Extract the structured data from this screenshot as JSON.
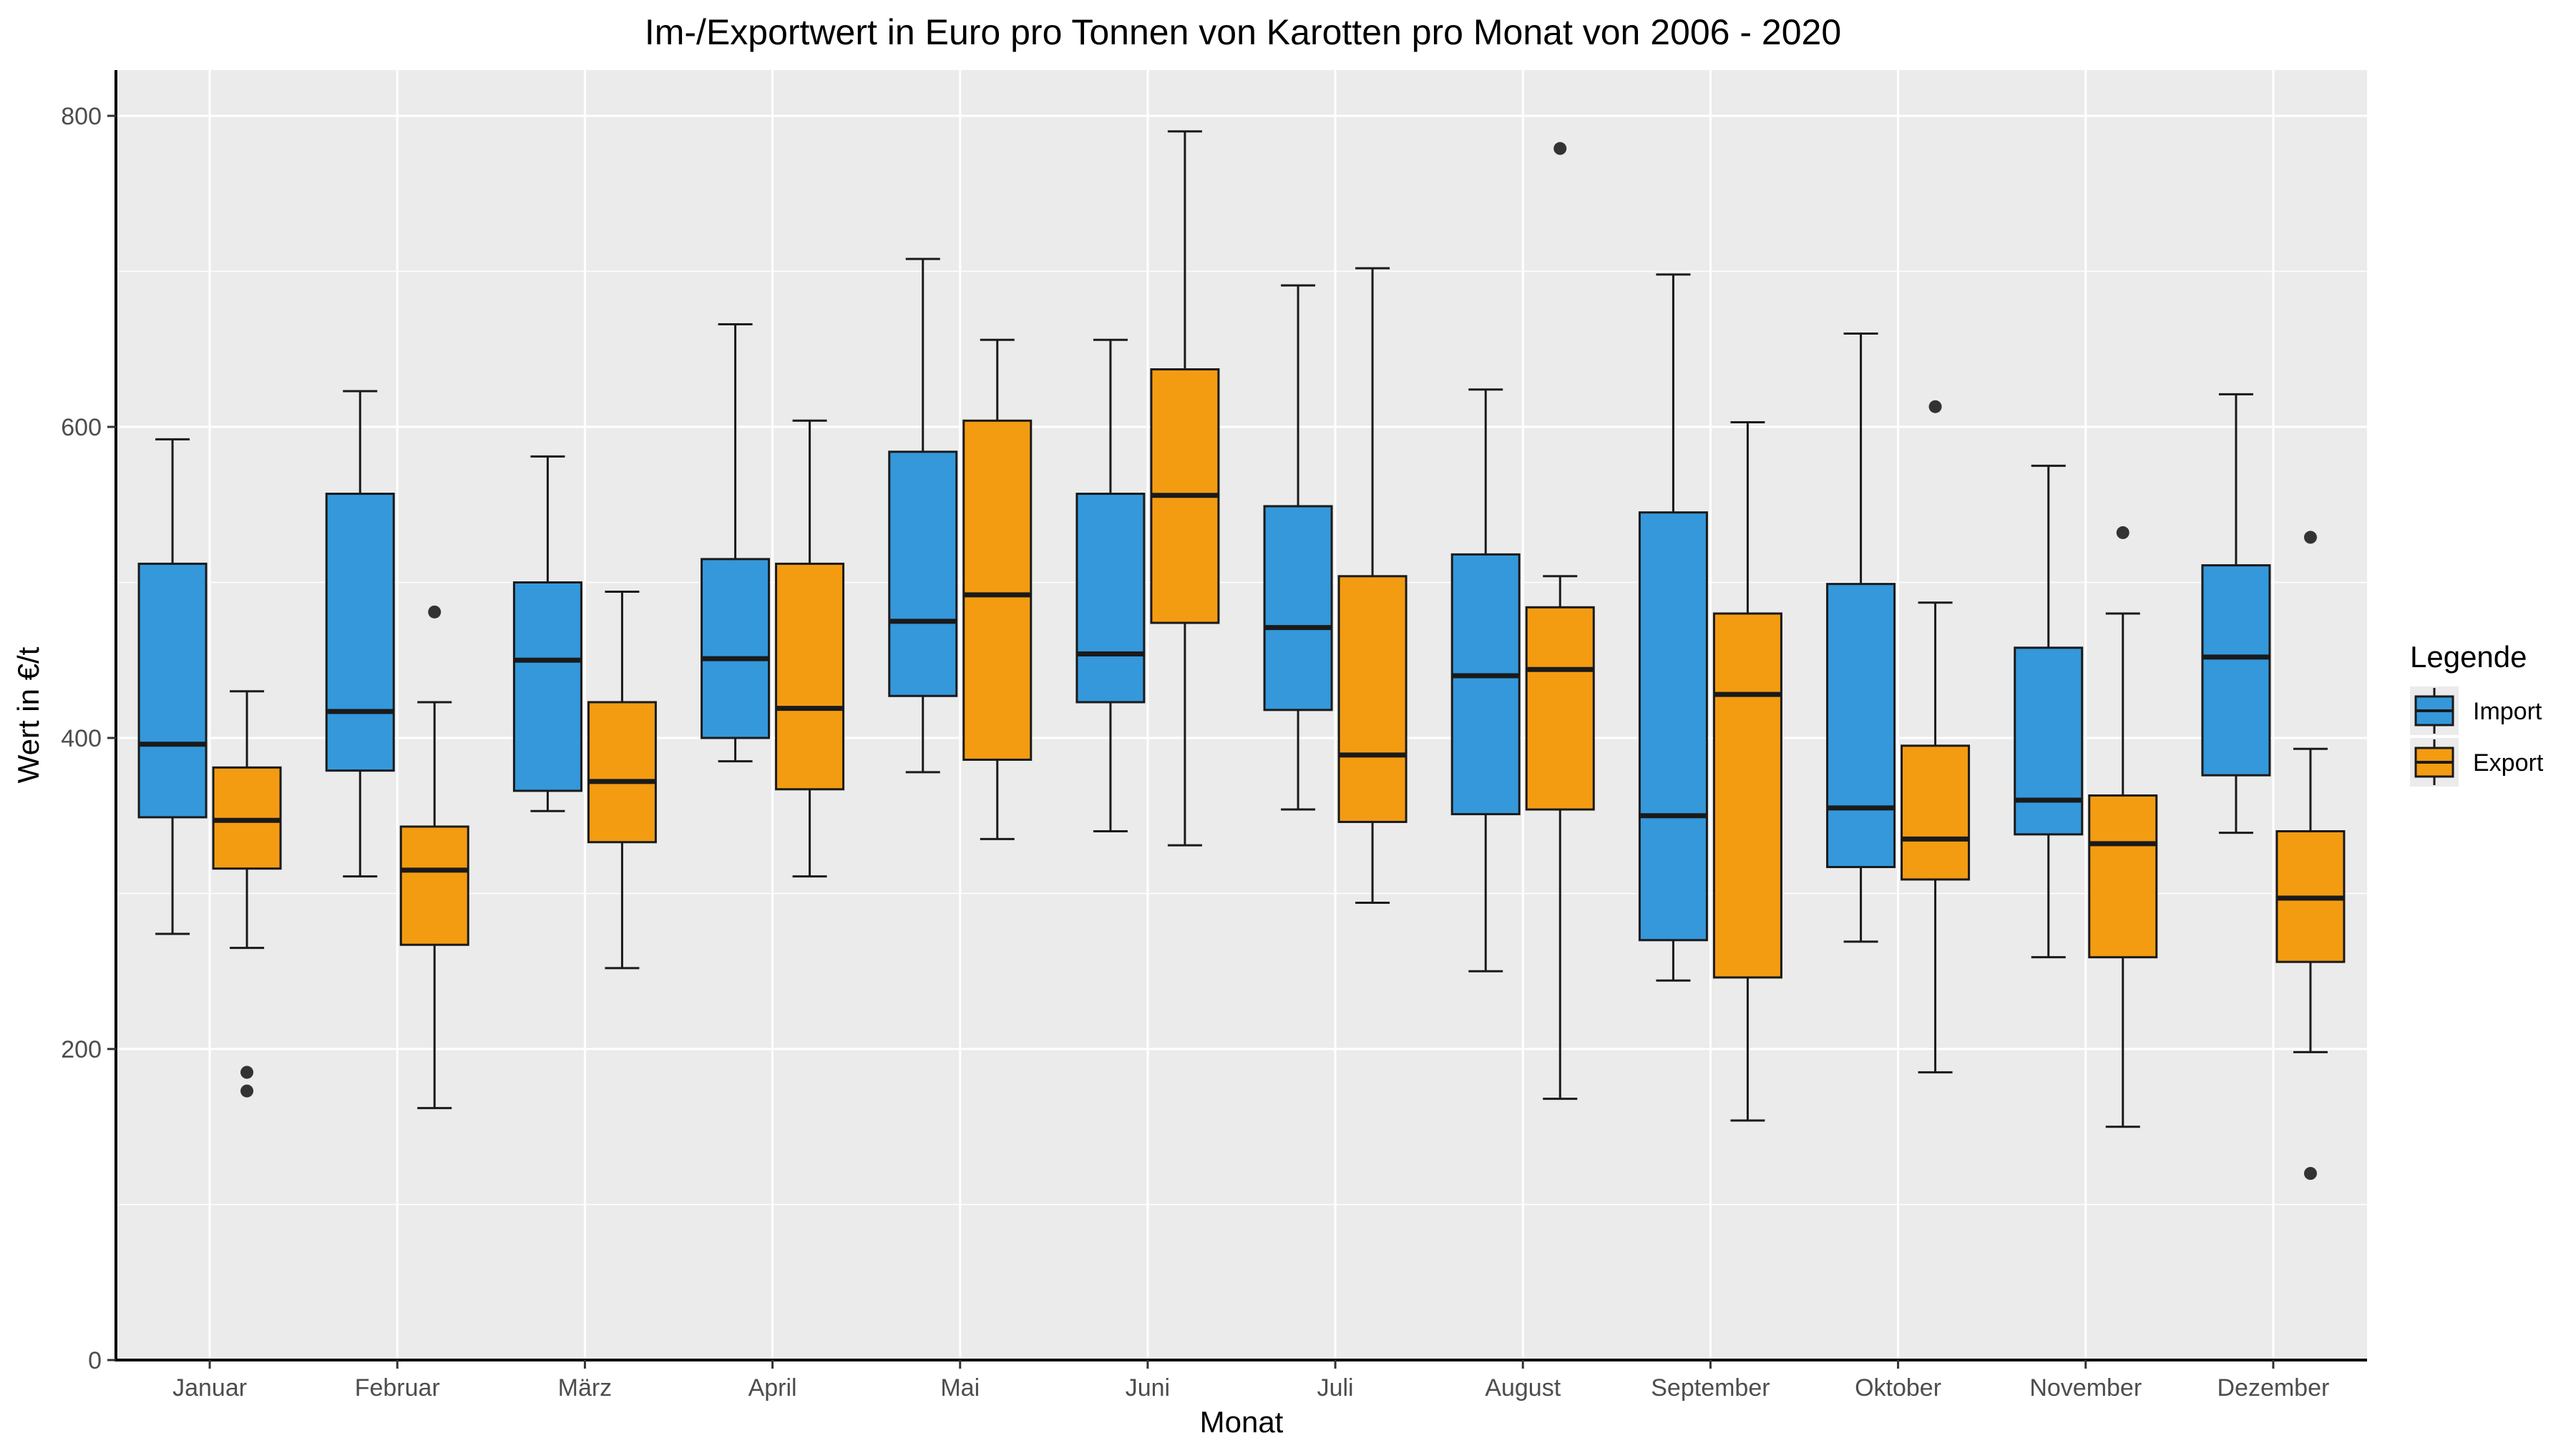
{
  "chart_data": {
    "type": "boxplot",
    "title": "Im-/Exportwert in Euro pro Tonnen von Karotten pro Monat von 2006 - 2020",
    "xlabel": "Monat",
    "ylabel": "Wert in €/t",
    "ylim": [
      0,
      830
    ],
    "yticks": [
      0,
      200,
      400,
      600,
      800
    ],
    "grid": true,
    "legend": {
      "title": "Legende",
      "position": "right",
      "entries": [
        {
          "name": "Import",
          "color": "#3498db"
        },
        {
          "name": "Export",
          "color": "#f39c12"
        }
      ]
    },
    "categories": [
      "Januar",
      "Februar",
      "März",
      "April",
      "Mai",
      "Juni",
      "Juli",
      "August",
      "September",
      "Oktober",
      "November",
      "Dezember"
    ],
    "series": [
      {
        "name": "Import",
        "color": "#3498db",
        "boxes": [
          {
            "min": 274,
            "q1": 349,
            "median": 396,
            "q3": 512,
            "max": 592,
            "outliers": []
          },
          {
            "min": 311,
            "q1": 379,
            "median": 417,
            "q3": 557,
            "max": 623,
            "outliers": []
          },
          {
            "min": 353,
            "q1": 366,
            "median": 450,
            "q3": 500,
            "max": 581,
            "outliers": []
          },
          {
            "min": 385,
            "q1": 400,
            "median": 451,
            "q3": 515,
            "max": 666,
            "outliers": []
          },
          {
            "min": 378,
            "q1": 427,
            "median": 475,
            "q3": 584,
            "max": 708,
            "outliers": []
          },
          {
            "min": 340,
            "q1": 423,
            "median": 454,
            "q3": 557,
            "max": 656,
            "outliers": []
          },
          {
            "min": 354,
            "q1": 418,
            "median": 471,
            "q3": 549,
            "max": 691,
            "outliers": []
          },
          {
            "min": 250,
            "q1": 351,
            "median": 440,
            "q3": 518,
            "max": 624,
            "outliers": []
          },
          {
            "min": 244,
            "q1": 270,
            "median": 350,
            "q3": 545,
            "max": 698,
            "outliers": []
          },
          {
            "min": 269,
            "q1": 317,
            "median": 355,
            "q3": 499,
            "max": 660,
            "outliers": []
          },
          {
            "min": 259,
            "q1": 338,
            "median": 360,
            "q3": 458,
            "max": 575,
            "outliers": []
          },
          {
            "min": 339,
            "q1": 376,
            "median": 452,
            "q3": 511,
            "max": 621,
            "outliers": []
          }
        ]
      },
      {
        "name": "Export",
        "color": "#f39c12",
        "boxes": [
          {
            "min": 265,
            "q1": 316,
            "median": 347,
            "q3": 381,
            "max": 430,
            "outliers": [
              185,
              173
            ]
          },
          {
            "min": 162,
            "q1": 267,
            "median": 315,
            "q3": 343,
            "max": 423,
            "outliers": [
              481
            ]
          },
          {
            "min": 252,
            "q1": 333,
            "median": 372,
            "q3": 423,
            "max": 494,
            "outliers": []
          },
          {
            "min": 311,
            "q1": 367,
            "median": 419,
            "q3": 512,
            "max": 604,
            "outliers": []
          },
          {
            "min": 335,
            "q1": 386,
            "median": 492,
            "q3": 604,
            "max": 656,
            "outliers": []
          },
          {
            "min": 331,
            "q1": 474,
            "median": 556,
            "q3": 637,
            "max": 790,
            "outliers": []
          },
          {
            "min": 294,
            "q1": 346,
            "median": 389,
            "q3": 504,
            "max": 702,
            "outliers": []
          },
          {
            "min": 168,
            "q1": 354,
            "median": 444,
            "q3": 484,
            "max": 504,
            "outliers": [
              779
            ]
          },
          {
            "min": 154,
            "q1": 246,
            "median": 428,
            "q3": 480,
            "max": 603,
            "outliers": []
          },
          {
            "min": 185,
            "q1": 309,
            "median": 335,
            "q3": 395,
            "max": 487,
            "outliers": [
              613
            ]
          },
          {
            "min": 150,
            "q1": 259,
            "median": 332,
            "q3": 363,
            "max": 480,
            "outliers": [
              532
            ]
          },
          {
            "min": 198,
            "q1": 256,
            "median": 297,
            "q3": 340,
            "max": 393,
            "outliers": [
              529,
              120
            ]
          }
        ]
      }
    ]
  }
}
